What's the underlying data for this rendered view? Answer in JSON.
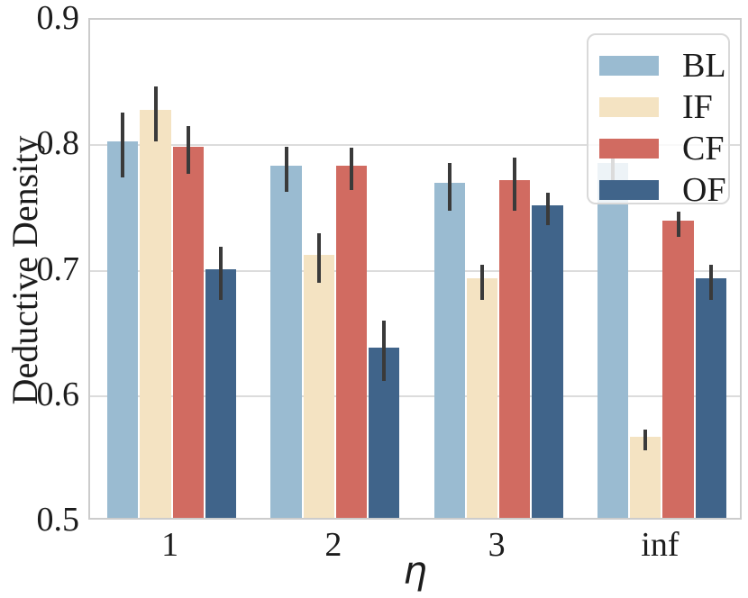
{
  "chart_data": {
    "type": "bar",
    "title": "",
    "xlabel": "η",
    "ylabel": "Deductive Density",
    "categories": [
      "1",
      "2",
      "3",
      "inf"
    ],
    "series": [
      {
        "name": "BL",
        "color": "#9abbd1",
        "values": [
          0.8,
          0.781,
          0.767,
          0.783
        ],
        "errors": [
          0.026,
          0.018,
          0.019,
          0.015
        ]
      },
      {
        "name": "IF",
        "color": "#f4e3c2",
        "values": [
          0.825,
          0.71,
          0.691,
          0.565
        ],
        "errors": [
          0.022,
          0.02,
          0.014,
          0.008
        ]
      },
      {
        "name": "CF",
        "color": "#d16b61",
        "values": [
          0.796,
          0.781,
          0.769,
          0.737
        ],
        "errors": [
          0.019,
          0.017,
          0.021,
          0.01
        ]
      },
      {
        "name": "OF",
        "color": "#40648a",
        "values": [
          0.698,
          0.636,
          0.749,
          0.691
        ],
        "errors": [
          0.021,
          0.024,
          0.013,
          0.014
        ]
      }
    ],
    "ylim": [
      0.5,
      0.9
    ],
    "yticks": [
      "0.9",
      "0.8",
      "0.7",
      "0.6",
      "0.5"
    ],
    "grid": true,
    "legend_position": "upper right",
    "legend_labels": [
      "BL",
      "IF",
      "CF",
      "OF"
    ],
    "error_bar_color": "#3a3a3a",
    "grid_color": "#dcdcdc",
    "spine_color": "#cccccc",
    "text_color": "#1c1c1c",
    "background_color": "#ffffff"
  }
}
